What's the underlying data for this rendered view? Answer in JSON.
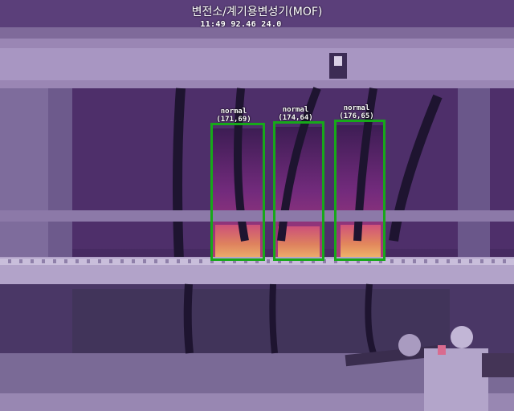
{
  "header": {
    "title": "변전소/계기용변성기(MOF)",
    "time": "11:49",
    "value_a": "92.46",
    "value_b": "24.0"
  },
  "detections": [
    {
      "status": "normal",
      "coords": "(171,69)"
    },
    {
      "status": "normal",
      "coords": "(174,64)"
    },
    {
      "status": "normal",
      "coords": "(176,65)"
    }
  ],
  "colors": {
    "box_outline": "#17a81a",
    "overlay_text": "#ffffff"
  }
}
